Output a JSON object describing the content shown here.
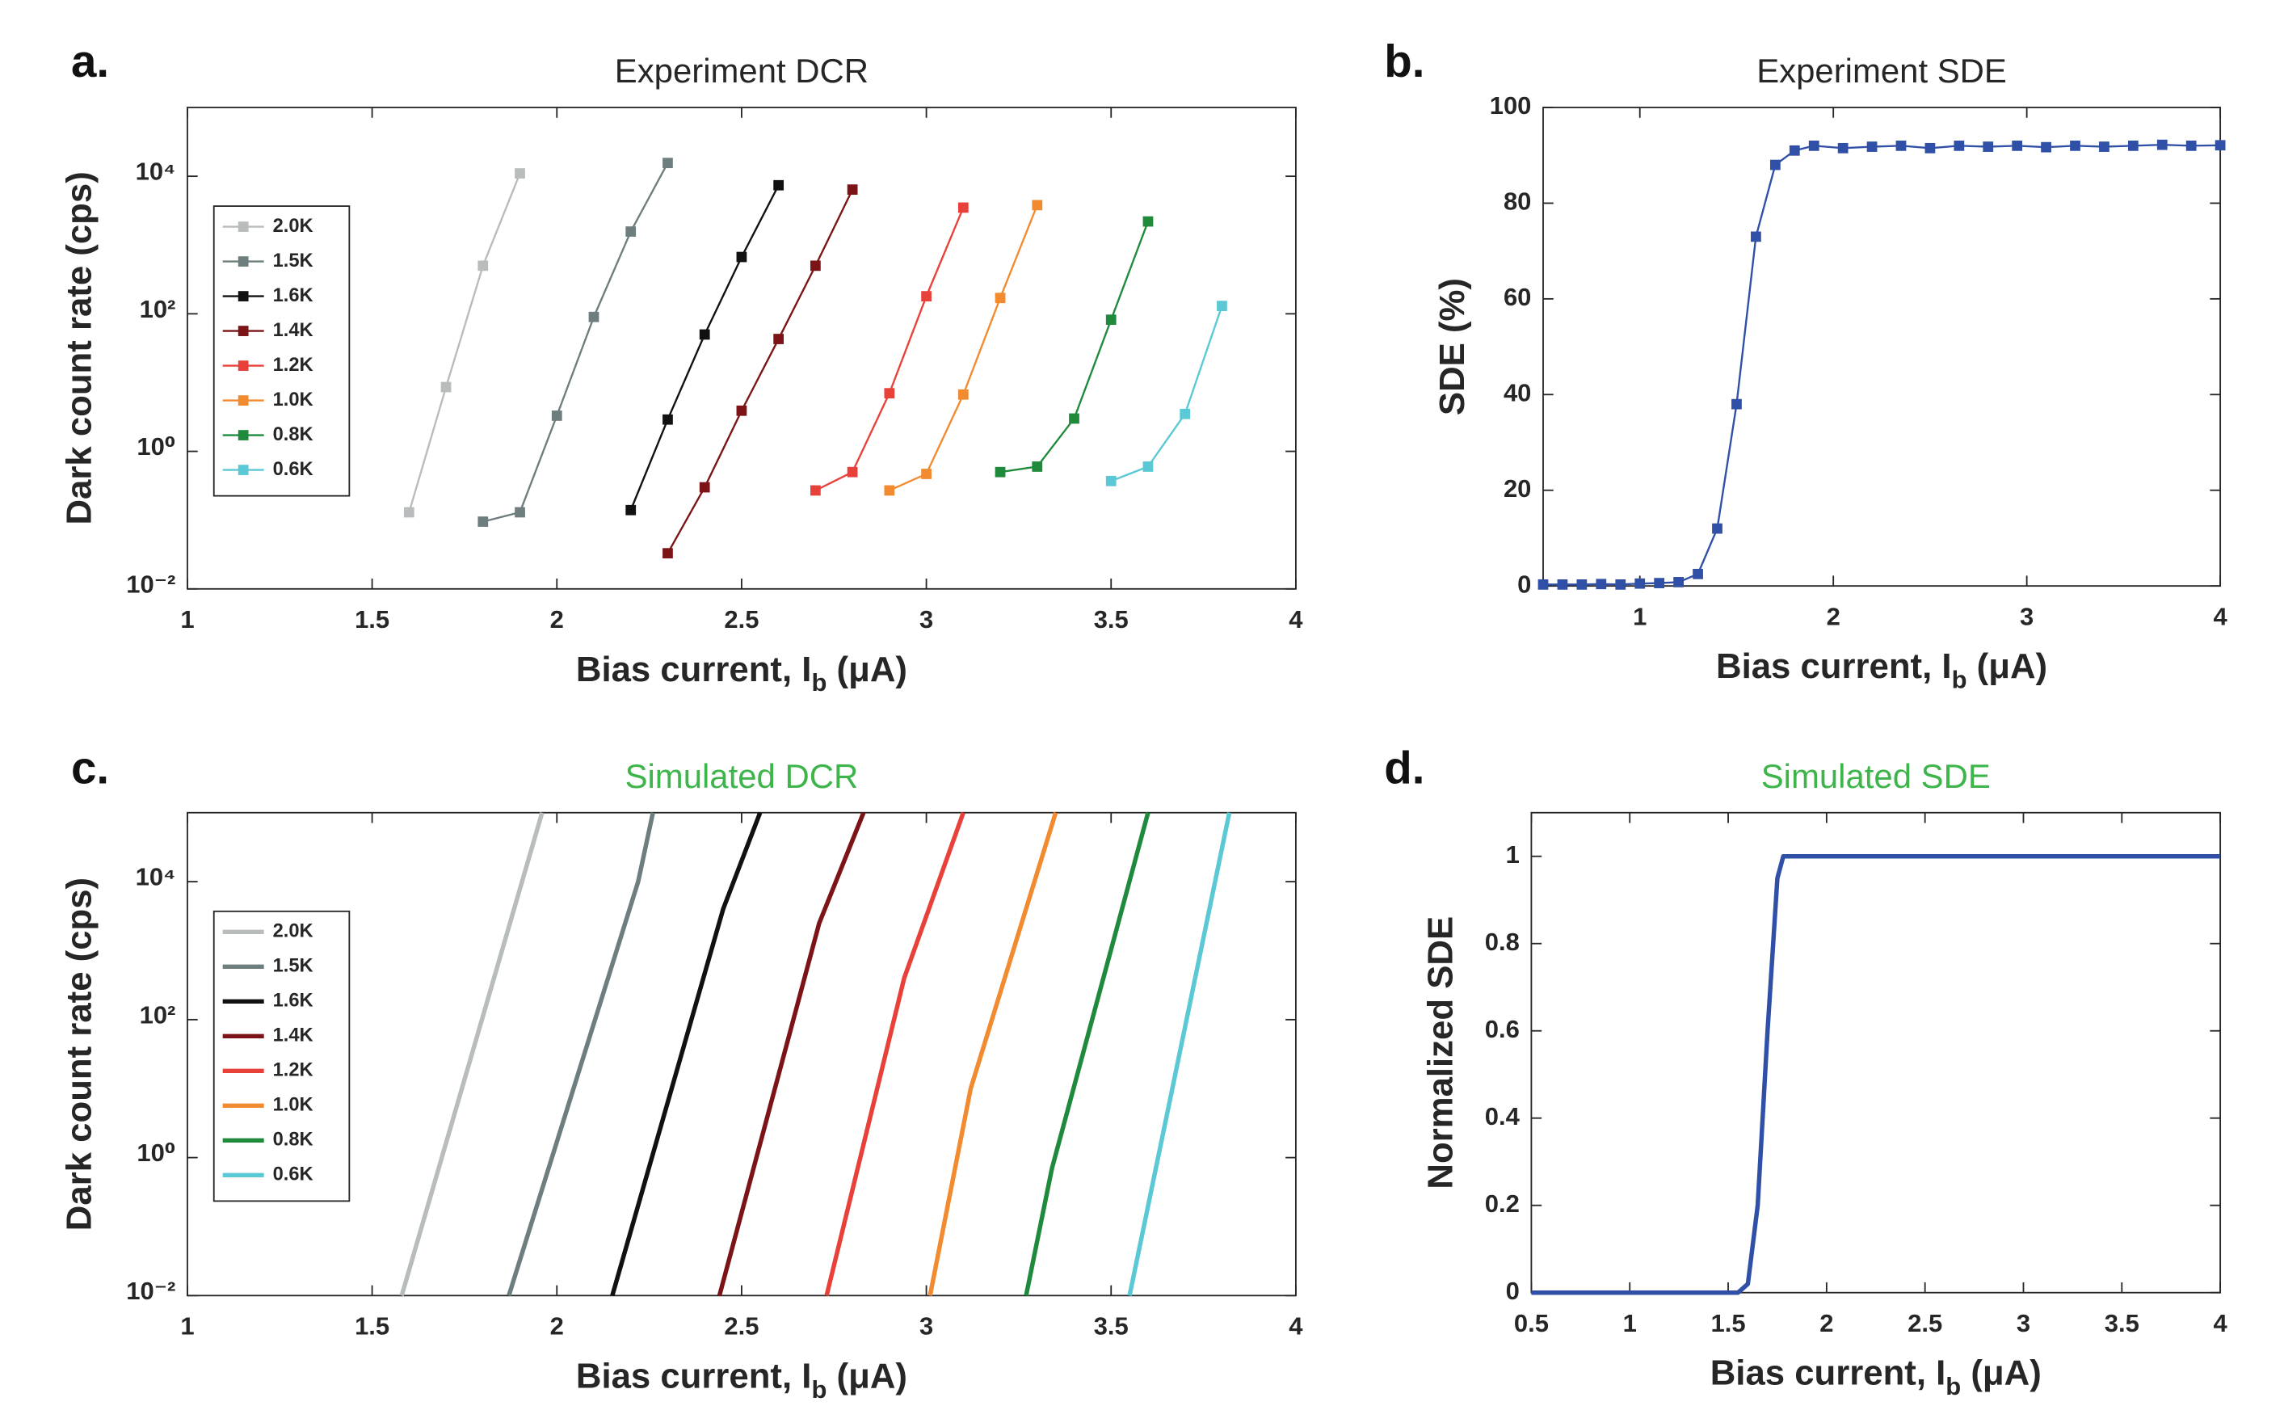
{
  "chart_data": [
    {
      "type": "line",
      "panel": "a.",
      "title": "Experiment DCR",
      "title_color": "#262626",
      "xlabel": [
        "Bias current, I",
        "b",
        " (μA)"
      ],
      "ylabel": "Dark count rate (cps)",
      "xlim": [
        1,
        4
      ],
      "xticks": [
        1,
        1.5,
        2,
        2.5,
        3,
        3.5,
        4
      ],
      "ylim": [
        0.01,
        100000
      ],
      "yscale": "log",
      "yticks": [
        {
          "value": 0.01,
          "label": "10⁻²"
        },
        {
          "value": 1,
          "label": "10⁰"
        },
        {
          "value": 100,
          "label": "10²"
        },
        {
          "value": 10000,
          "label": "10⁴"
        }
      ],
      "markers": true,
      "legend": "upper left",
      "series": [
        {
          "name": "2.0K",
          "color": "#b9bcbc",
          "x": [
            1.6,
            1.7,
            1.8,
            1.9
          ],
          "values": [
            0.13,
            8.6,
            500,
            11000
          ]
        },
        {
          "name": "1.5K",
          "color": "#6e7e7e",
          "x": [
            1.8,
            1.9,
            2.0,
            2.1,
            2.2,
            2.3
          ],
          "values": [
            0.095,
            0.13,
            3.3,
            90,
            1570,
            15600
          ]
        },
        {
          "name": "1.6K",
          "color": "#111111",
          "x": [
            2.2,
            2.3,
            2.4,
            2.5,
            2.6
          ],
          "values": [
            0.14,
            2.9,
            50,
            670,
            7400
          ]
        },
        {
          "name": "1.4K",
          "color": "#7c1417",
          "x": [
            2.3,
            2.4,
            2.5,
            2.6,
            2.7,
            2.8
          ],
          "values": [
            0.033,
            0.3,
            3.9,
            43,
            500,
            6400
          ]
        },
        {
          "name": "1.2K",
          "color": "#e8413a",
          "x": [
            2.7,
            2.8,
            2.9,
            3.0,
            3.1
          ],
          "values": [
            0.27,
            0.5,
            7,
            180,
            3500
          ]
        },
        {
          "name": "1.0K",
          "color": "#f28a30",
          "x": [
            2.9,
            3.0,
            3.1,
            3.2,
            3.3
          ],
          "values": [
            0.27,
            0.47,
            6.7,
            170,
            3800
          ]
        },
        {
          "name": "0.8K",
          "color": "#1f8a3c",
          "x": [
            3.2,
            3.3,
            3.4,
            3.5,
            3.6
          ],
          "values": [
            0.5,
            0.6,
            3,
            82,
            2200
          ]
        },
        {
          "name": "0.6K",
          "color": "#5bc8d6",
          "x": [
            3.5,
            3.6,
            3.7,
            3.8
          ],
          "values": [
            0.37,
            0.6,
            3.5,
            130
          ]
        }
      ]
    },
    {
      "type": "line",
      "panel": "b.",
      "title": "Experiment SDE",
      "title_color": "#262626",
      "xlabel": [
        "Bias current, I",
        "b",
        " (μA)"
      ],
      "ylabel": "SDE (%)",
      "xlim": [
        0.5,
        4
      ],
      "xticks": [
        1,
        2,
        3,
        4
      ],
      "ylim": [
        0,
        100
      ],
      "yticks": [
        0,
        20,
        40,
        60,
        80,
        100
      ],
      "markers": true,
      "series": [
        {
          "color": "#3050a8",
          "x": [
            0.5,
            0.6,
            0.7,
            0.8,
            0.9,
            1.0,
            1.1,
            1.2,
            1.3,
            1.4,
            1.5,
            1.6,
            1.7,
            1.8,
            1.9,
            2.05,
            2.2,
            2.35,
            2.5,
            2.65,
            2.8,
            2.95,
            3.1,
            3.25,
            3.4,
            3.55,
            3.7,
            3.85,
            4.0
          ],
          "values": [
            0.3,
            0.3,
            0.3,
            0.4,
            0.3,
            0.5,
            0.6,
            0.8,
            2.5,
            12,
            38,
            73,
            88,
            91,
            92,
            91.5,
            91.8,
            92,
            91.5,
            92,
            91.8,
            92,
            91.7,
            92,
            91.8,
            92,
            92.2,
            92,
            92.1
          ]
        }
      ]
    },
    {
      "type": "line",
      "panel": "c.",
      "title": "Simulated DCR",
      "title_color": "#3db54a",
      "xlabel": [
        "Bias current, I",
        "b",
        " (μA)"
      ],
      "ylabel": "Dark count rate (cps)",
      "xlim": [
        1,
        4
      ],
      "xticks": [
        1,
        1.5,
        2,
        2.5,
        3,
        3.5,
        4
      ],
      "ylim": [
        0.01,
        100000
      ],
      "yscale": "log",
      "yticks": [
        {
          "value": 0.01,
          "label": "10⁻²"
        },
        {
          "value": 1,
          "label": "10⁰"
        },
        {
          "value": 100,
          "label": "10²"
        },
        {
          "value": 10000,
          "label": "10⁴"
        }
      ],
      "markers": false,
      "legend": "upper left",
      "series": [
        {
          "name": "2.0K",
          "color": "#b9bcbc",
          "x": [
            1.58,
            1.96
          ],
          "values": [
            0.01,
            100000
          ]
        },
        {
          "name": "1.5K",
          "color": "#6e7e7e",
          "x": [
            1.87,
            2.22,
            2.26
          ],
          "values": [
            0.01,
            10000,
            100000
          ]
        },
        {
          "name": "1.6K",
          "color": "#111111",
          "x": [
            2.15,
            2.45,
            2.55
          ],
          "values": [
            0.01,
            4000,
            100000
          ]
        },
        {
          "name": "1.4K",
          "color": "#7c1417",
          "x": [
            2.44,
            2.71,
            2.83
          ],
          "values": [
            0.01,
            2500,
            100000
          ]
        },
        {
          "name": "1.2K",
          "color": "#e8413a",
          "x": [
            2.73,
            2.94,
            3.1
          ],
          "values": [
            0.01,
            400,
            100000
          ]
        },
        {
          "name": "1.0K",
          "color": "#f28a30",
          "x": [
            3.01,
            3.12,
            3.35
          ],
          "values": [
            0.01,
            10,
            100000
          ]
        },
        {
          "name": "0.8K",
          "color": "#1f8a3c",
          "x": [
            3.27,
            3.34,
            3.6
          ],
          "values": [
            0.01,
            0.7,
            100000
          ]
        },
        {
          "name": "0.6K",
          "color": "#5bc8d6",
          "x": [
            3.55,
            3.82
          ],
          "values": [
            0.01,
            100000
          ]
        }
      ]
    },
    {
      "type": "line",
      "panel": "d.",
      "title": "Simulated SDE",
      "title_color": "#3db54a",
      "xlabel": [
        "Bias current, I",
        "b",
        " (μA)"
      ],
      "ylabel": "Normalized SDE",
      "xlim": [
        0.5,
        4
      ],
      "xticks": [
        0.5,
        1,
        1.5,
        2,
        2.5,
        3,
        3.5,
        4
      ],
      "ylim": [
        0,
        1.1
      ],
      "yticks": [
        0,
        0.2,
        0.4,
        0.6,
        0.8,
        1
      ],
      "markers": false,
      "series": [
        {
          "color": "#3050a8",
          "x": [
            0.5,
            1.55,
            1.6,
            1.65,
            1.7,
            1.75,
            1.78,
            4
          ],
          "values": [
            0,
            0,
            0.02,
            0.2,
            0.6,
            0.95,
            1,
            1
          ]
        }
      ]
    }
  ]
}
